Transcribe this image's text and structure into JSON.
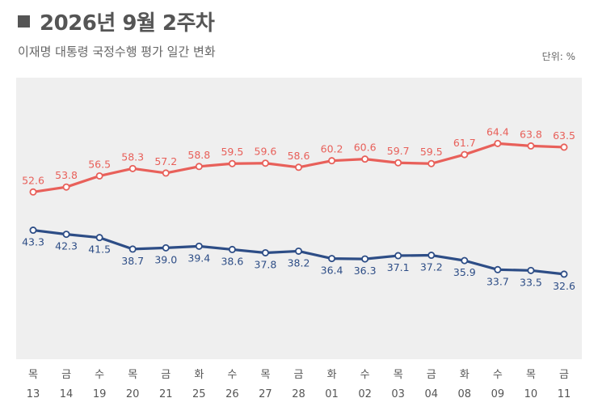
{
  "header": {
    "title": "2026년 9월 2주차",
    "subtitle": "이재명 대통령 국정수행 평가 일간 변화",
    "unit": "단위: %"
  },
  "colors": {
    "positive": "#e8605a",
    "negative": "#2d4d86",
    "plot_bg": "#efefef"
  },
  "chart_data": {
    "type": "line",
    "categories": [
      {
        "day": "목",
        "date": "13"
      },
      {
        "day": "금",
        "date": "14"
      },
      {
        "day": "수",
        "date": "19"
      },
      {
        "day": "목",
        "date": "20"
      },
      {
        "day": "금",
        "date": "21"
      },
      {
        "day": "화",
        "date": "25"
      },
      {
        "day": "수",
        "date": "26"
      },
      {
        "day": "목",
        "date": "27"
      },
      {
        "day": "금",
        "date": "28"
      },
      {
        "day": "화",
        "date": "01"
      },
      {
        "day": "수",
        "date": "02"
      },
      {
        "day": "목",
        "date": "03"
      },
      {
        "day": "금",
        "date": "04"
      },
      {
        "day": "화",
        "date": "08"
      },
      {
        "day": "수",
        "date": "09"
      },
      {
        "day": "목",
        "date": "10"
      },
      {
        "day": "금",
        "date": "11"
      }
    ],
    "series": [
      {
        "key": "positive",
        "values": [
          52.6,
          53.8,
          56.5,
          58.3,
          57.2,
          58.8,
          59.5,
          59.6,
          58.6,
          60.2,
          60.6,
          59.7,
          59.5,
          61.7,
          64.4,
          63.8,
          63.5
        ]
      },
      {
        "key": "negative",
        "values": [
          43.3,
          42.3,
          41.5,
          38.7,
          39.0,
          39.4,
          38.6,
          37.8,
          38.2,
          36.4,
          36.3,
          37.1,
          37.2,
          35.9,
          33.7,
          33.5,
          32.6
        ]
      }
    ],
    "grid": false,
    "legend": "none"
  }
}
